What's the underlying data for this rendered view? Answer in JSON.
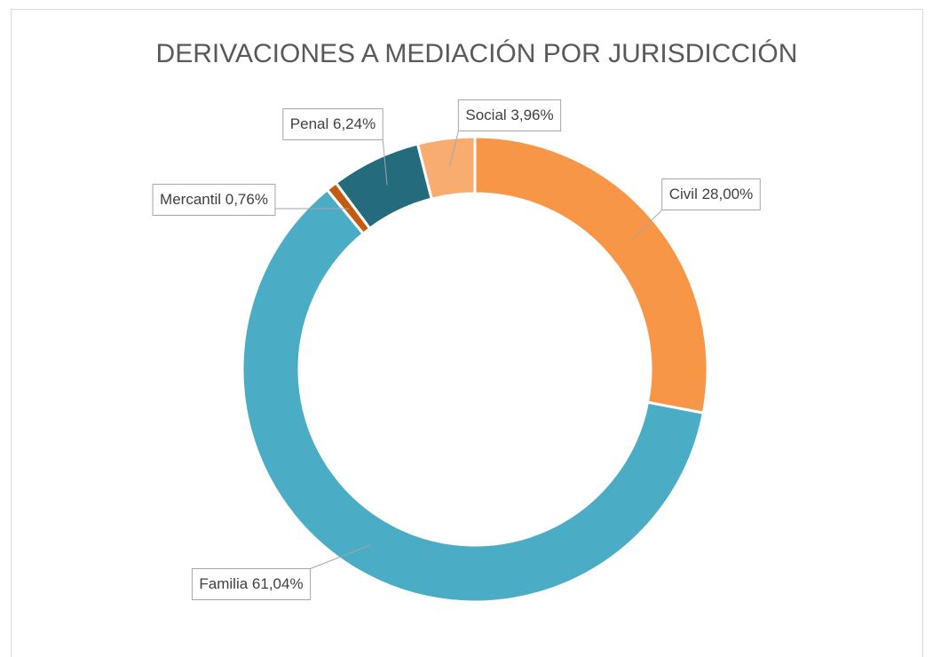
{
  "chart_data": {
    "type": "donut",
    "title": "DERIVACIONES A MEDIACIÓN POR JURISDICCIÓN",
    "categories": [
      "Civil",
      "Familia",
      "Mercantil",
      "Penal",
      "Social"
    ],
    "values": [
      28.0,
      61.04,
      0.76,
      6.24,
      3.96
    ],
    "value_labels": [
      "28,00%",
      "61,04%",
      "0,76%",
      "6,24%",
      "3,96%"
    ],
    "colors": [
      "#F79646",
      "#4BACC6",
      "#C55A11",
      "#246B7E",
      "#F9AC6F"
    ]
  }
}
